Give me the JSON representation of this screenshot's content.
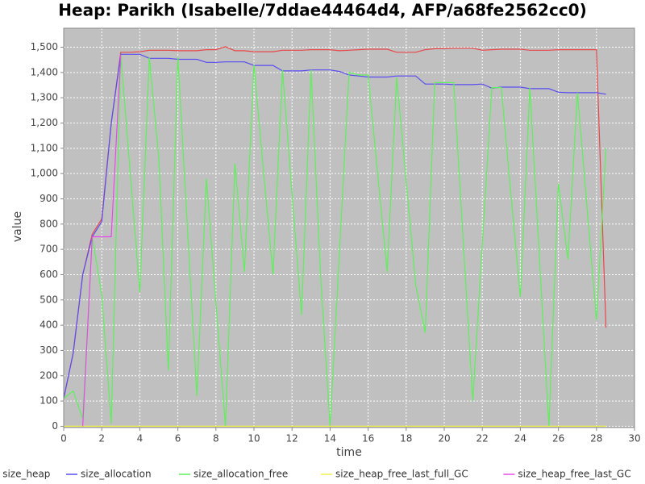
{
  "chart_data": {
    "type": "line",
    "title": "Heap: Parikh (Isabelle/7ddae44464d4, AFP/a68fe2562cc0)",
    "x_label": "time",
    "y_label": "value",
    "x": [
      0,
      0.5,
      1,
      1.5,
      2,
      2.5,
      3,
      3.5,
      4,
      4.5,
      5,
      5.5,
      6,
      6.5,
      7,
      7.5,
      8,
      8.5,
      9,
      9.5,
      10,
      10.5,
      11,
      11.5,
      12,
      12.5,
      13,
      13.5,
      14,
      14.5,
      15,
      15.5,
      16,
      16.5,
      17,
      17.5,
      18,
      18.5,
      19,
      19.5,
      20,
      20.5,
      21,
      21.5,
      22,
      22.5,
      23,
      23.5,
      24,
      24.5,
      25,
      25.5,
      26,
      26.5,
      27,
      27.5,
      28,
      28.5
    ],
    "series": [
      {
        "name": "size_heap",
        "color": "#e8474a",
        "values": [
          110,
          290,
          600,
          760,
          820,
          1200,
          1480,
          1480,
          1482,
          1488,
          1488,
          1488,
          1486,
          1486,
          1486,
          1490,
          1490,
          1502,
          1486,
          1486,
          1482,
          1482,
          1482,
          1488,
          1488,
          1488,
          1490,
          1490,
          1490,
          1486,
          1488,
          1490,
          1492,
          1492,
          1492,
          1480,
          1480,
          1480,
          1490,
          1494,
          1494,
          1496,
          1496,
          1496,
          1488,
          1490,
          1492,
          1492,
          1492,
          1488,
          1488,
          1488,
          1490,
          1490,
          1490,
          1490,
          1490,
          390
        ]
      },
      {
        "name": "size_allocation",
        "color": "#5a4cf0",
        "values": [
          110,
          290,
          600,
          750,
          810,
          1200,
          1472,
          1472,
          1472,
          1456,
          1456,
          1456,
          1452,
          1452,
          1452,
          1440,
          1440,
          1442,
          1442,
          1442,
          1428,
          1428,
          1428,
          1406,
          1406,
          1406,
          1410,
          1410,
          1410,
          1404,
          1390,
          1386,
          1382,
          1382,
          1382,
          1386,
          1386,
          1386,
          1354,
          1354,
          1354,
          1352,
          1352,
          1352,
          1354,
          1338,
          1342,
          1342,
          1342,
          1336,
          1336,
          1336,
          1322,
          1320,
          1320,
          1320,
          1320,
          1314
        ]
      },
      {
        "name": "size_allocation_free",
        "color": "#5ef05a",
        "values": [
          110,
          140,
          30,
          750,
          520,
          10,
          1470,
          1000,
          530,
          1460,
          1060,
          220,
          1460,
          790,
          120,
          980,
          490,
          0,
          1040,
          610,
          1430,
          1010,
          600,
          1410,
          920,
          440,
          1410,
          600,
          0,
          700,
          1400,
          1390,
          1390,
          1000,
          610,
          1380,
          970,
          560,
          370,
          1360,
          1360,
          1360,
          730,
          100,
          720,
          1340,
          1340,
          920,
          510,
          1340,
          670,
          0,
          960,
          660,
          1320,
          870,
          420,
          1100
        ]
      },
      {
        "name": "size_heap_free_last_full_GC",
        "color": "#f0f04a",
        "values": [
          0,
          0,
          0,
          0,
          0,
          0,
          0,
          0,
          0,
          0,
          0,
          0,
          0,
          0,
          0,
          0,
          0,
          0,
          0,
          0,
          0,
          0,
          0,
          0,
          0,
          0,
          0,
          0,
          0,
          0,
          0,
          0,
          0,
          0,
          0,
          0,
          0,
          0,
          0,
          0,
          0,
          0,
          0,
          0,
          0,
          0,
          0,
          0,
          0,
          0,
          0,
          0,
          0,
          0,
          0,
          0,
          0,
          0
        ]
      },
      {
        "name": "size_heap_free_last_GC",
        "color": "#e84ae8",
        "values": [
          null,
          null,
          0,
          750,
          750,
          750,
          1470,
          null,
          null,
          null,
          null,
          null,
          null,
          null,
          null,
          null,
          null,
          null,
          null,
          null,
          null,
          null,
          null,
          null,
          null,
          null,
          null,
          null,
          null,
          null,
          null,
          null,
          null,
          null,
          null,
          null,
          null,
          null,
          null,
          null,
          null,
          null,
          null,
          null,
          null,
          null,
          null,
          null,
          null,
          null,
          null,
          null,
          null,
          null,
          null,
          null,
          null,
          null
        ]
      }
    ],
    "xlim": [
      0,
      30
    ],
    "xticks": [
      0,
      2,
      4,
      6,
      8,
      10,
      12,
      14,
      16,
      18,
      20,
      22,
      24,
      26,
      28,
      30
    ],
    "ylim": [
      -5,
      1575
    ],
    "yticks": [
      0,
      100,
      200,
      300,
      400,
      500,
      600,
      700,
      800,
      900,
      {
        "value": 1000,
        "label": "1,000"
      },
      {
        "value": 1100,
        "label": "1,100"
      },
      {
        "value": 1200,
        "label": "1,200"
      },
      {
        "value": 1300,
        "label": "1,300"
      },
      {
        "value": 1400,
        "label": "1,400"
      },
      {
        "value": 1500,
        "label": "1,500"
      }
    ],
    "grid": true,
    "plot_background": "#c0c0c0",
    "legend": "bottom"
  }
}
